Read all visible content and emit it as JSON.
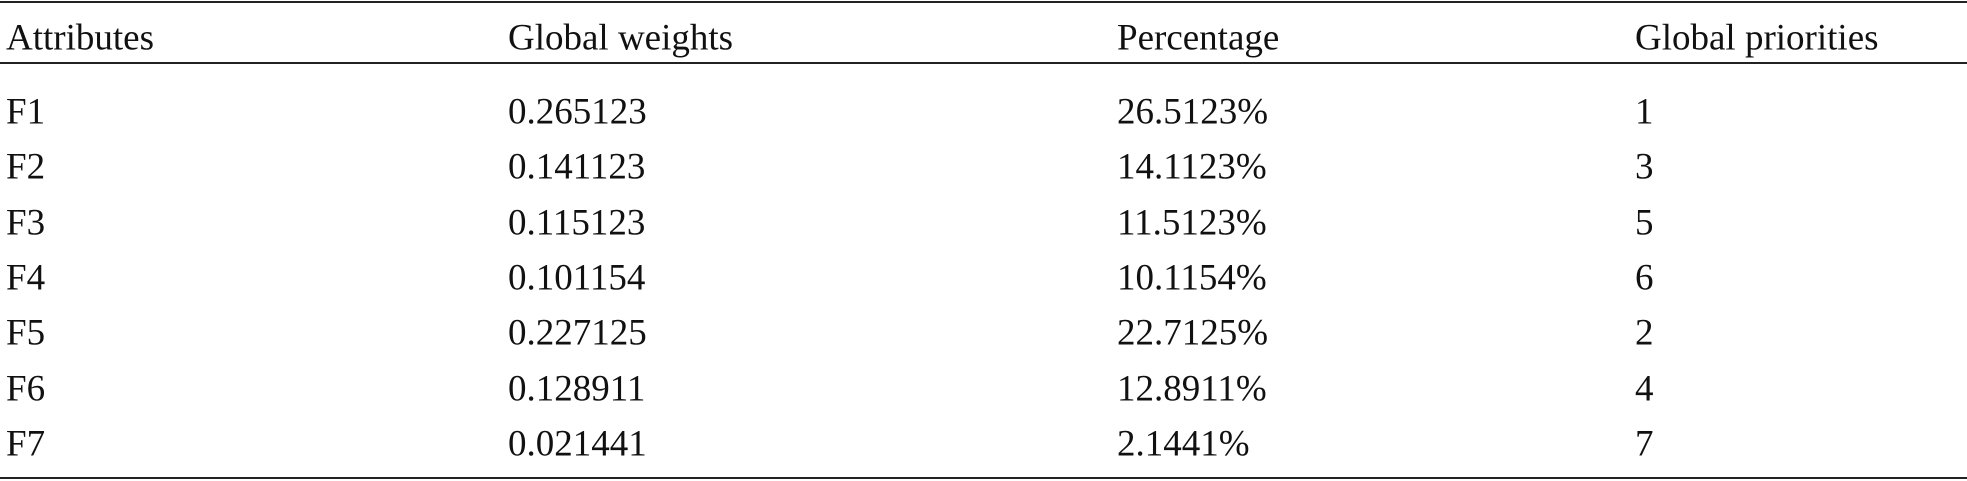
{
  "table": {
    "header": [
      "Attributes",
      "Global weights",
      "Percentage",
      "Global priorities"
    ],
    "rows": [
      [
        "F1",
        "0.265123",
        "26.5123%",
        "1"
      ],
      [
        "F2",
        "0.141123",
        "14.1123%",
        "3"
      ],
      [
        "F3",
        "0.115123",
        "11.5123%",
        "5"
      ],
      [
        "F4",
        "0.101154",
        "10.1154%",
        "6"
      ],
      [
        "F5",
        "0.227125",
        "22.7125%",
        "2"
      ],
      [
        "F6",
        "0.128911",
        "12.8911%",
        "4"
      ],
      [
        "F7",
        "0.021441",
        "2.1441%",
        "7"
      ]
    ]
  }
}
